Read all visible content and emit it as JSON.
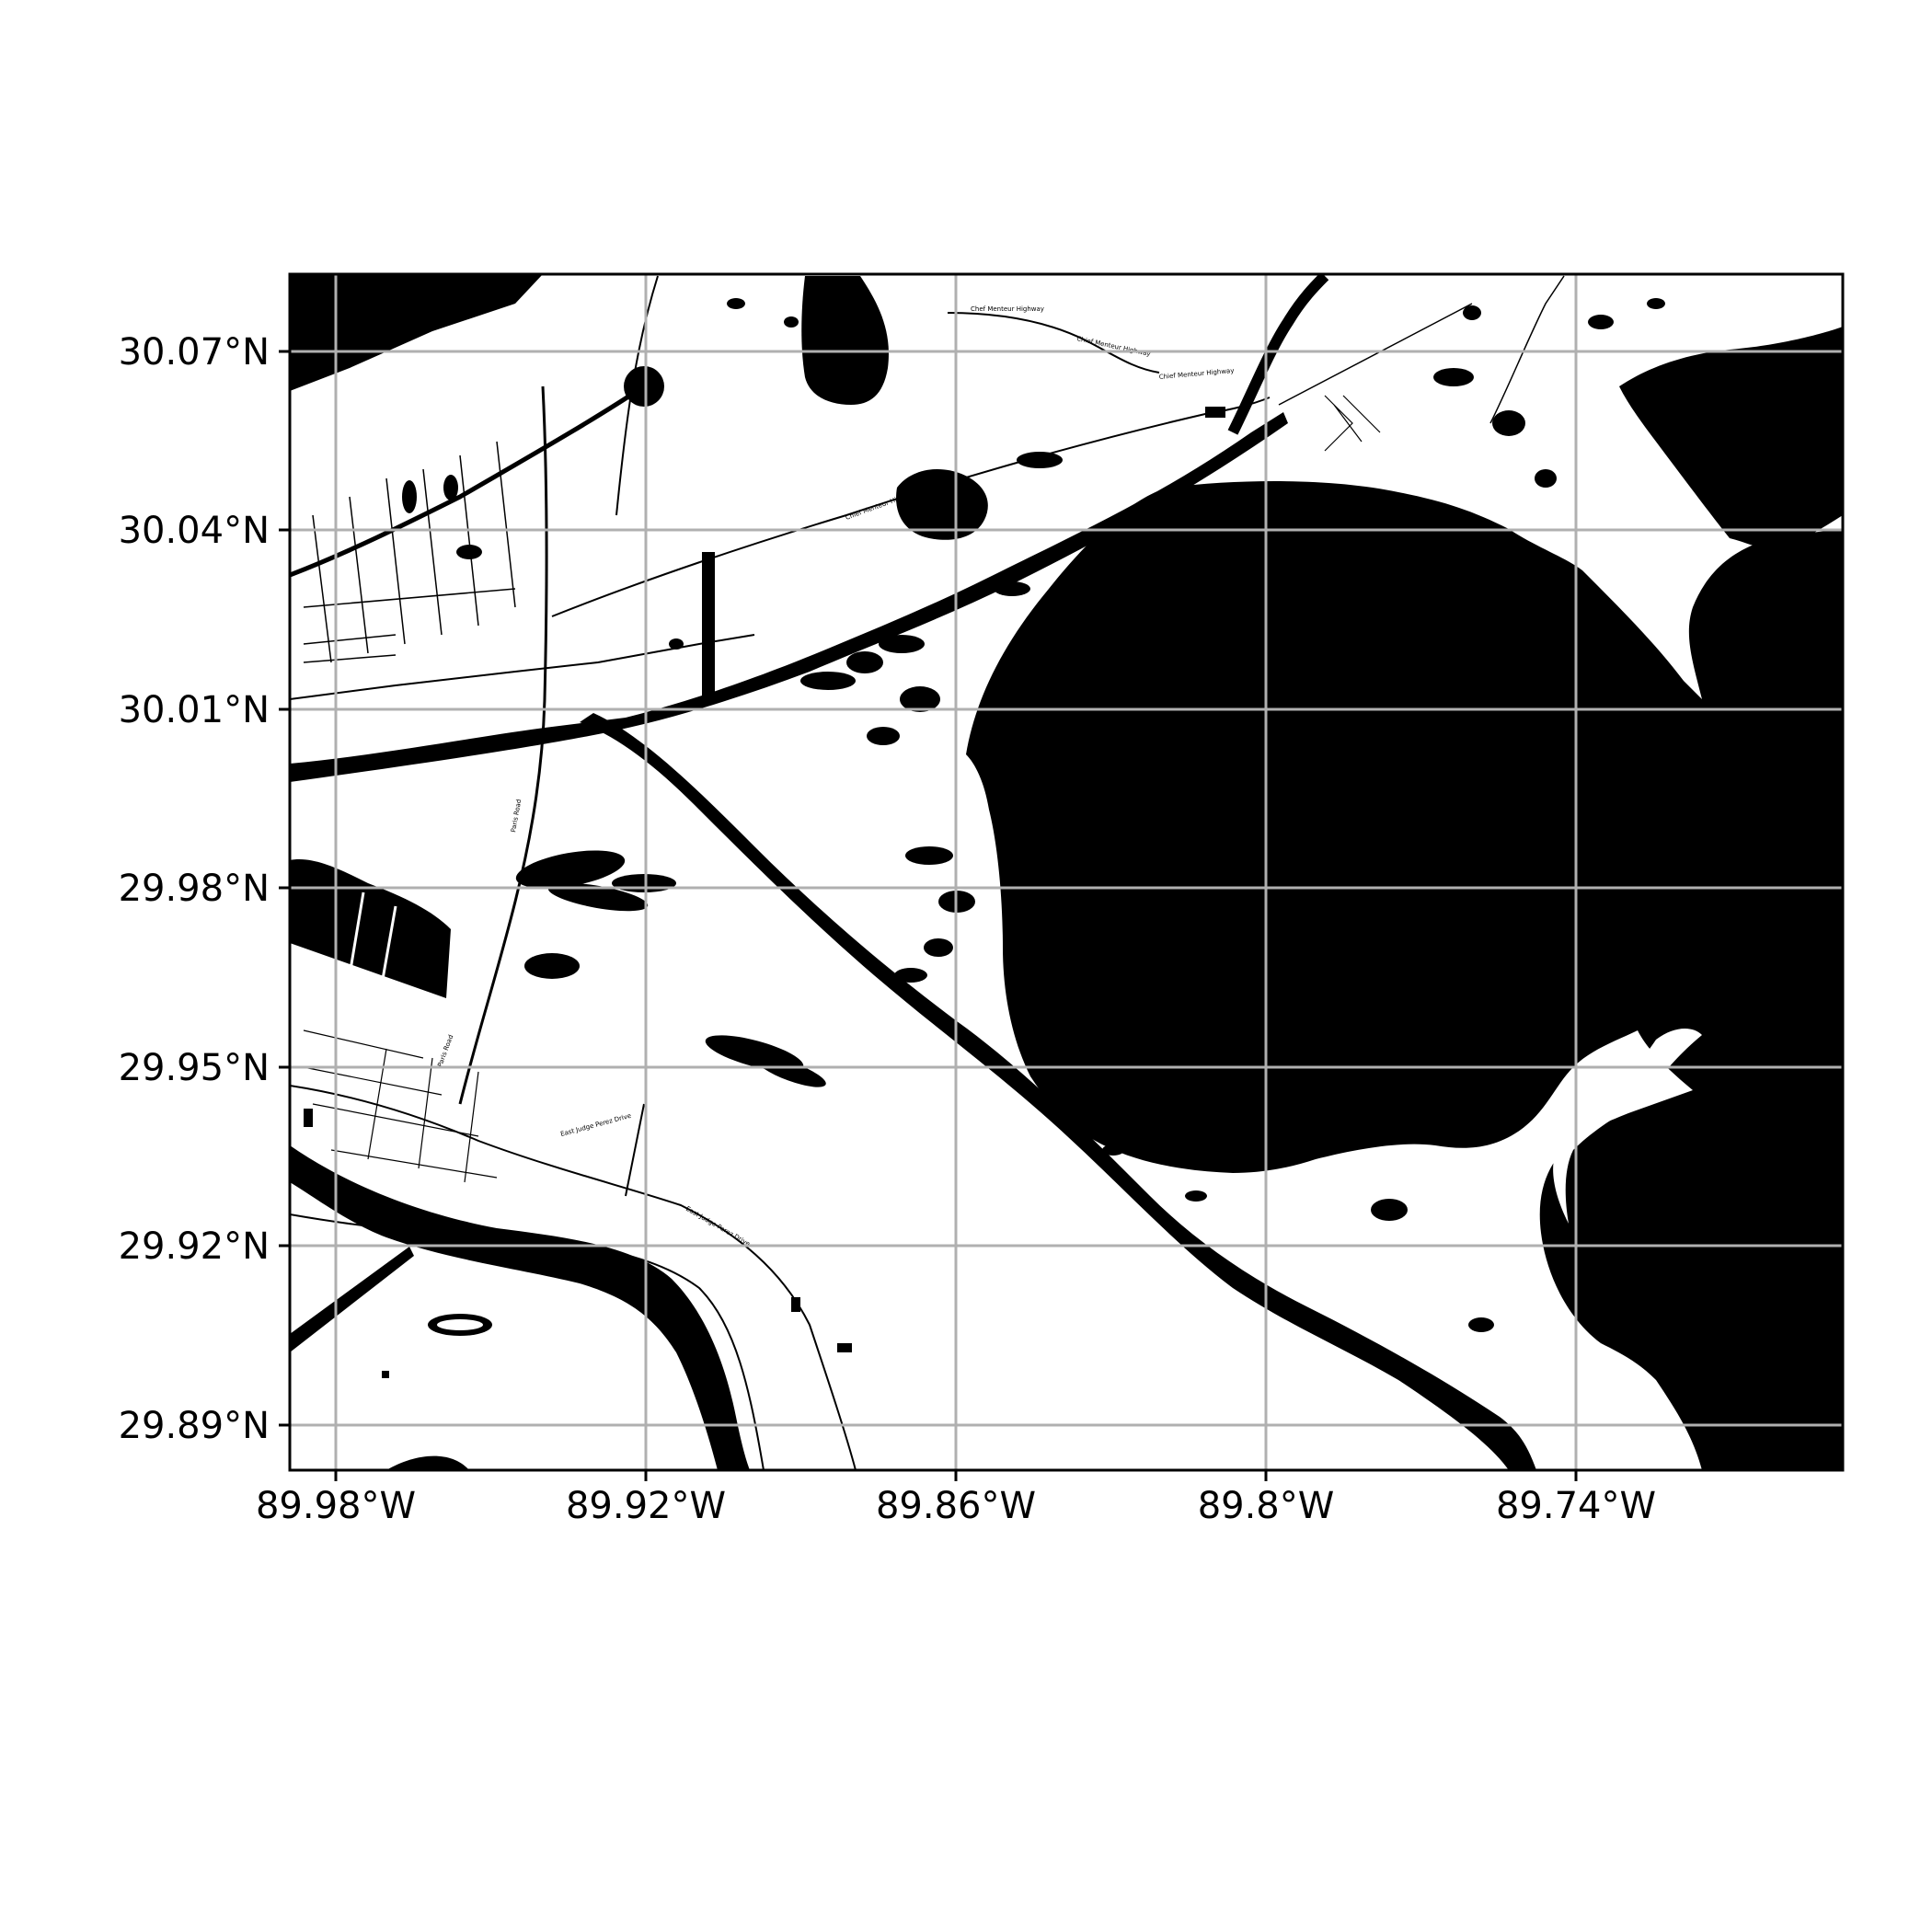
{
  "map": {
    "land_color": "#ffffff",
    "water_color": "#000000",
    "grid_color": "#b0b0b0",
    "frame_color": "#000000",
    "x_ticks": [
      "89.98°W",
      "89.92°W",
      "89.86°W",
      "89.8°W",
      "89.74°W"
    ],
    "y_ticks": [
      "30.07°N",
      "30.04°N",
      "30.01°N",
      "29.98°N",
      "29.95°N",
      "29.92°N",
      "29.89°N"
    ],
    "road_labels": [
      "Chief Menteur Highway",
      "Chief Menteur Highway",
      "Chief Menteur Highway",
      "Chef Menteur Highway",
      "East Judge Perez Drive",
      "East Judge Perez Drive",
      "Paris Road",
      "Paris Road",
      "River Road"
    ]
  }
}
